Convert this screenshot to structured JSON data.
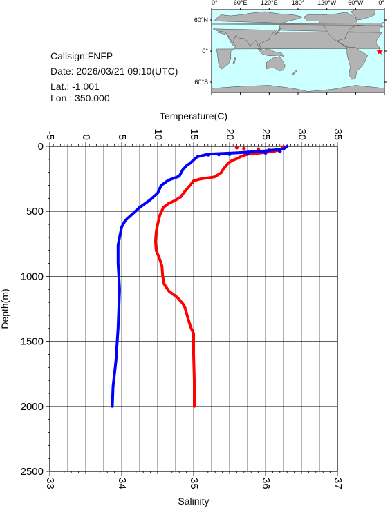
{
  "station": {
    "callsign": "Callsign:FNFP",
    "date": "Date:  2026/03/21 09:10(UTC)",
    "lat": "Lat.:  -1.001",
    "lon": "Lon.:  350.000"
  },
  "map": {
    "lon_labels": [
      "0°",
      "60°E",
      "120°E",
      "180°",
      "120°W",
      "60°W",
      "0°"
    ],
    "lat_labels": [
      "60°N",
      "0°",
      "60°S"
    ],
    "ocean_color": "#ccffff",
    "land_color": "#b3b3b3",
    "marker": {
      "lon": 350.0,
      "lat": -1.001,
      "color": "#ff0000",
      "symbol": "star"
    }
  },
  "chart_data": {
    "type": "line",
    "title": "",
    "ylabel": "Depth(m)",
    "ylim": [
      2500,
      0
    ],
    "yticks": [
      "0",
      "500",
      "1000",
      "1500",
      "2000",
      "2500"
    ],
    "x_top": {
      "label": "Temperature(C)",
      "lim": [
        -5,
        35
      ],
      "ticks": [
        "-5",
        "0",
        "5",
        "10",
        "15",
        "20",
        "25",
        "30",
        "35"
      ]
    },
    "x_bottom": {
      "label": "Salinity",
      "lim": [
        33,
        37
      ],
      "ticks": [
        "33",
        "34",
        "35",
        "36",
        "37"
      ]
    },
    "grid": true,
    "series": [
      {
        "color": "#ff0000",
        "axis": "x_top",
        "points": [
          [
            27.5,
            0
          ],
          [
            27.4,
            10
          ],
          [
            27.2,
            20
          ],
          [
            26.8,
            30
          ],
          [
            26.0,
            40
          ],
          [
            24.5,
            50
          ],
          [
            22.5,
            60
          ],
          [
            21.5,
            80
          ],
          [
            21.0,
            95
          ],
          [
            20.3,
            110
          ],
          [
            19.8,
            130
          ],
          [
            19.2,
            170
          ],
          [
            18.8,
            205
          ],
          [
            17.9,
            235
          ],
          [
            16.0,
            250
          ],
          [
            15.0,
            265
          ],
          [
            14.5,
            300
          ],
          [
            13.8,
            345
          ],
          [
            13.2,
            390
          ],
          [
            12.3,
            420
          ],
          [
            11.5,
            440
          ],
          [
            10.8,
            470
          ],
          [
            10.3,
            530
          ],
          [
            10.0,
            600
          ],
          [
            9.8,
            660
          ],
          [
            9.7,
            730
          ],
          [
            9.8,
            800
          ],
          [
            10.3,
            870
          ],
          [
            10.6,
            920
          ],
          [
            10.7,
            1000
          ],
          [
            10.9,
            1060
          ],
          [
            11.6,
            1115
          ],
          [
            12.8,
            1165
          ],
          [
            13.5,
            1210
          ],
          [
            13.8,
            1240
          ],
          [
            14.2,
            1320
          ],
          [
            14.6,
            1390
          ],
          [
            15.0,
            1440
          ],
          [
            15.0,
            1600
          ],
          [
            15.1,
            1800
          ],
          [
            15.1,
            2000
          ]
        ],
        "markers": [
          [
            21.0,
            10
          ],
          [
            22.0,
            18
          ],
          [
            24.0,
            22
          ],
          [
            25.5,
            25
          ],
          [
            27.0,
            40
          ],
          [
            24.0,
            45
          ],
          [
            22.0,
            48
          ]
        ]
      },
      {
        "color": "#0000ff",
        "axis": "x_bottom",
        "points": [
          [
            36.3,
            0
          ],
          [
            36.25,
            20
          ],
          [
            36.0,
            35
          ],
          [
            35.6,
            50
          ],
          [
            35.2,
            60
          ],
          [
            35.05,
            80
          ],
          [
            34.95,
            130
          ],
          [
            34.9,
            150
          ],
          [
            34.85,
            180
          ],
          [
            34.8,
            230
          ],
          [
            34.65,
            260
          ],
          [
            34.55,
            300
          ],
          [
            34.5,
            360
          ],
          [
            34.4,
            410
          ],
          [
            34.25,
            470
          ],
          [
            34.15,
            520
          ],
          [
            34.05,
            570
          ],
          [
            34.0,
            620
          ],
          [
            33.97,
            700
          ],
          [
            33.95,
            760
          ],
          [
            33.95,
            900
          ],
          [
            33.97,
            1100
          ],
          [
            33.95,
            1400
          ],
          [
            33.92,
            1650
          ],
          [
            33.88,
            1850
          ],
          [
            33.87,
            2000
          ]
        ],
        "markers": [
          [
            35.2,
            65
          ],
          [
            35.35,
            62
          ],
          [
            35.5,
            60
          ],
          [
            35.75,
            55
          ],
          [
            36.0,
            50
          ],
          [
            36.2,
            35
          ]
        ]
      }
    ]
  }
}
